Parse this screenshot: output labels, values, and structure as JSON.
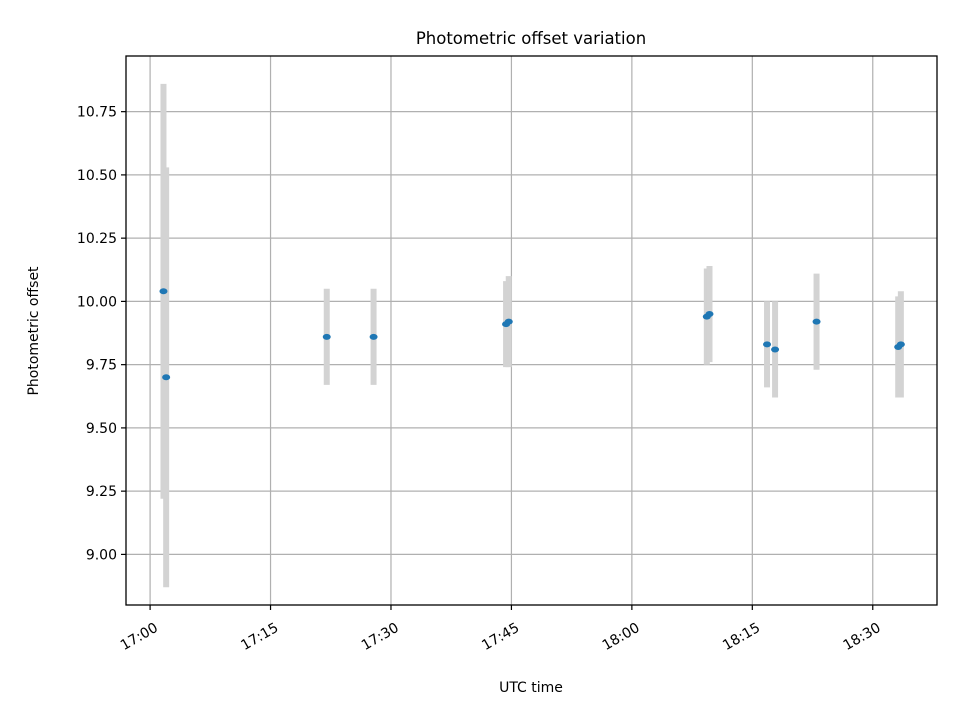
{
  "chart_data": {
    "type": "scatter",
    "title": "Photometric offset variation",
    "xlabel": "UTC time",
    "ylabel": "Photometric offset",
    "x_ticks": [
      "17:00",
      "17:15",
      "17:30",
      "17:45",
      "18:00",
      "18:15",
      "18:30"
    ],
    "y_ticks": [
      "9.00",
      "9.25",
      "9.50",
      "9.75",
      "10.00",
      "10.25",
      "10.50",
      "10.75"
    ],
    "xlim": [
      "16:57",
      "18:38"
    ],
    "ylim": [
      8.8,
      10.97
    ],
    "grid": true,
    "colors": {
      "point": "#1f77b4",
      "errorbar": "#d3d3d3",
      "grid": "#b0b0b0"
    },
    "points": [
      {
        "x": "17:01:40",
        "y": 10.04,
        "yerr": 0.82
      },
      {
        "x": "17:02:00",
        "y": 9.7,
        "yerr": 0.83
      },
      {
        "x": "17:22:00",
        "y": 9.86,
        "yerr": 0.19
      },
      {
        "x": "17:27:50",
        "y": 9.86,
        "yerr": 0.19
      },
      {
        "x": "17:44:20",
        "y": 9.91,
        "yerr": 0.17
      },
      {
        "x": "17:44:40",
        "y": 9.92,
        "yerr": 0.18
      },
      {
        "x": "18:09:20",
        "y": 9.94,
        "yerr": 0.19
      },
      {
        "x": "18:09:40",
        "y": 9.95,
        "yerr": 0.19
      },
      {
        "x": "18:16:50",
        "y": 9.83,
        "yerr": 0.17
      },
      {
        "x": "18:17:50",
        "y": 9.81,
        "yerr": 0.19
      },
      {
        "x": "18:23:00",
        "y": 9.92,
        "yerr": 0.19
      },
      {
        "x": "18:33:10",
        "y": 9.82,
        "yerr": 0.2
      },
      {
        "x": "18:33:30",
        "y": 9.83,
        "yerr": 0.21
      }
    ]
  }
}
